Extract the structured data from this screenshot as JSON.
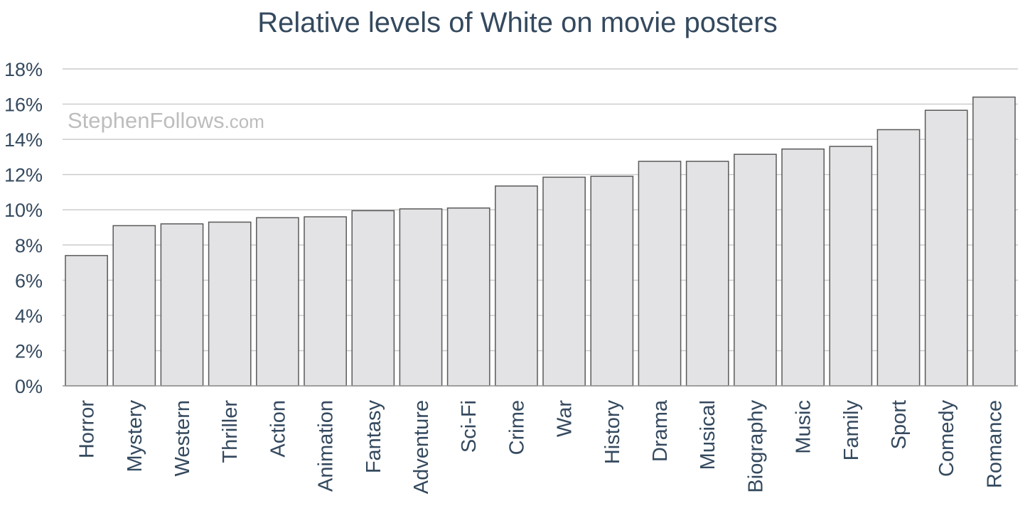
{
  "chart_data": {
    "type": "bar",
    "title": "Relative levels of White on movie posters",
    "xlabel": "",
    "ylabel": "",
    "ylim": [
      0,
      18
    ],
    "y_ticks": [
      "0%",
      "2%",
      "4%",
      "6%",
      "8%",
      "10%",
      "12%",
      "14%",
      "16%",
      "18%"
    ],
    "grid": true,
    "categories": [
      "Horror",
      "Mystery",
      "Western",
      "Thriller",
      "Action",
      "Animation",
      "Fantasy",
      "Adventure",
      "Sci-Fi",
      "Crime",
      "War",
      "History",
      "Drama",
      "Musical",
      "Biography",
      "Music",
      "Family",
      "Sport",
      "Comedy",
      "Romance"
    ],
    "values": [
      7.4,
      9.1,
      9.2,
      9.3,
      9.55,
      9.6,
      9.95,
      10.05,
      10.1,
      11.35,
      11.85,
      11.9,
      12.75,
      12.75,
      13.15,
      13.45,
      13.6,
      14.55,
      15.65,
      16.4
    ],
    "colors": {
      "bar_fill": "#e3e3e5",
      "bar_stroke": "#5a5a5a",
      "grid": "#cccccc",
      "text": "#34495e"
    }
  },
  "watermark": {
    "main": "StephenFollows",
    "suffix": ".com"
  }
}
